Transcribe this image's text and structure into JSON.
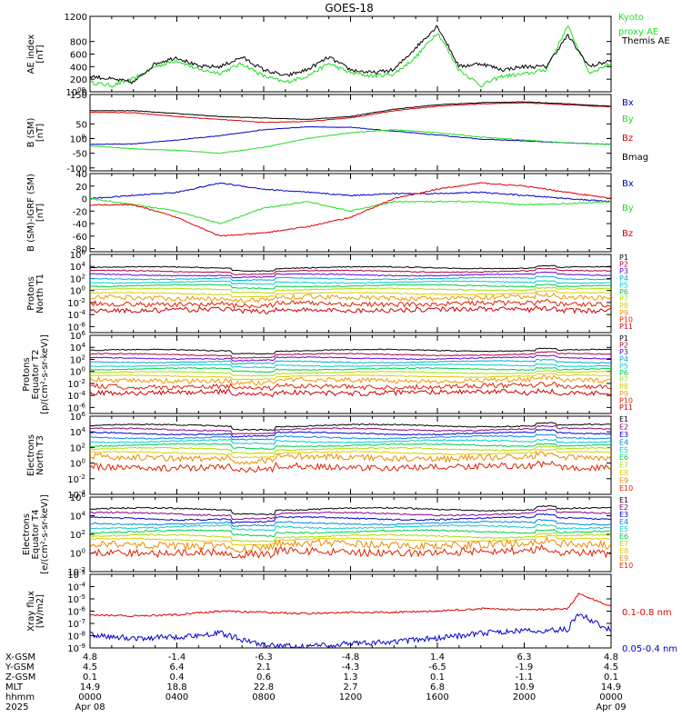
{
  "title": "GOES-18",
  "colors": {
    "green": "#22dd22",
    "black": "#000000",
    "blue": "#0000cc",
    "red": "#dd0000",
    "proton_scale": [
      "#000000",
      "#aa0044",
      "#6600cc",
      "#00aacc",
      "#00cccc",
      "#00cc44",
      "#aadd00",
      "#ddcc00",
      "#ee9900",
      "#dd2200",
      "#cc0000"
    ],
    "electron_scale": [
      "#000000",
      "#880088",
      "#0000cc",
      "#0088dd",
      "#00cccc",
      "#00cc44",
      "#aadd00",
      "#ddcc00",
      "#ee8800",
      "#dd2200"
    ]
  },
  "x_axis": {
    "ticks": [
      "0000",
      "0400",
      "0800",
      "1200",
      "1600",
      "2000",
      "0000"
    ],
    "rows": [
      {
        "label": "X-GSM",
        "values": [
          "4.8",
          "-1.4",
          "-6.3",
          "-4.8",
          "1.4",
          "6.3",
          "4.8"
        ]
      },
      {
        "label": "Y-GSM",
        "values": [
          "4.5",
          "6.4",
          "2.1",
          "-4.3",
          "-6.5",
          "-1.9",
          "4.5"
        ]
      },
      {
        "label": "Z-GSM",
        "values": [
          "0.1",
          "0.4",
          "0.6",
          "1.3",
          "0.1",
          "-1.1",
          "0.1"
        ]
      },
      {
        "label": "MLT",
        "values": [
          "14.9",
          "18.8",
          "22.8",
          "2.7",
          "6.8",
          "10.9",
          "14.9"
        ]
      },
      {
        "label": "hhmm",
        "values": [
          "0000",
          "0400",
          "0800",
          "1200",
          "1600",
          "2000",
          "0000"
        ]
      }
    ],
    "year": "2025",
    "date_start": "Apr 08",
    "date_end": "Apr 09"
  },
  "chart_data": [
    {
      "type": "line",
      "ylabel": [
        "AE index",
        "[nT]"
      ],
      "ylim": [
        0,
        1200
      ],
      "yticks": [
        "0",
        "200",
        "400",
        "600",
        "800",
        "1000",
        "1200"
      ],
      "legend": [
        {
          "label": "Kyoto",
          "color": "#22dd22"
        },
        {
          "label": "proxy AE",
          "color": "#22dd22"
        },
        {
          "label": "Themis AE",
          "color": "#000000"
        }
      ],
      "series": [
        {
          "name": "Kyoto proxy AE",
          "color": "#22dd22",
          "x": [
            0,
            1,
            2,
            3,
            4,
            5,
            6,
            7,
            8,
            9,
            10,
            11,
            12,
            13,
            14,
            15,
            16,
            17,
            18,
            19,
            20,
            21,
            22,
            23,
            24
          ],
          "values": [
            150,
            100,
            200,
            400,
            500,
            350,
            300,
            450,
            250,
            150,
            250,
            450,
            300,
            250,
            280,
            550,
            950,
            350,
            100,
            250,
            280,
            350,
            1050,
            300,
            450
          ]
        },
        {
          "name": "Themis AE",
          "color": "#000000",
          "x": [
            0,
            1,
            2,
            3,
            4,
            5,
            6,
            7,
            8,
            9,
            10,
            11,
            12,
            13,
            14,
            15,
            16,
            17,
            18,
            19,
            20,
            21,
            22,
            23,
            24
          ],
          "values": [
            250,
            200,
            150,
            450,
            550,
            400,
            400,
            550,
            350,
            250,
            350,
            550,
            350,
            300,
            350,
            700,
            1050,
            400,
            450,
            350,
            400,
            400,
            900,
            400,
            500
          ]
        }
      ]
    },
    {
      "type": "line",
      "ylabel": [
        "B (SM)",
        "[nT]"
      ],
      "ylim": [
        -110,
        150
      ],
      "yticks": [
        "-100",
        "-50",
        "0",
        "50",
        "100",
        "150"
      ],
      "legend": [
        {
          "label": "Bx",
          "color": "#0000cc"
        },
        {
          "label": "By",
          "color": "#22dd22"
        },
        {
          "label": "Bz",
          "color": "#dd0000"
        },
        {
          "label": "Bmag",
          "color": "#000000"
        }
      ],
      "series": [
        {
          "name": "Bx",
          "color": "#0000cc",
          "x": [
            0,
            2,
            4,
            6,
            8,
            10,
            12,
            14,
            16,
            18,
            20,
            22,
            24
          ],
          "values": [
            -20,
            -18,
            -5,
            10,
            30,
            40,
            38,
            25,
            12,
            -2,
            -8,
            -15,
            -20
          ]
        },
        {
          "name": "By",
          "color": "#22dd22",
          "x": [
            0,
            2,
            4,
            6,
            8,
            10,
            12,
            14,
            16,
            18,
            20,
            22,
            24
          ],
          "values": [
            -25,
            -35,
            -40,
            -50,
            -30,
            0,
            20,
            30,
            20,
            5,
            -5,
            -15,
            -20
          ]
        },
        {
          "name": "Bz",
          "color": "#dd0000",
          "x": [
            0,
            2,
            4,
            6,
            8,
            10,
            12,
            14,
            16,
            18,
            20,
            22,
            24
          ],
          "values": [
            90,
            88,
            75,
            65,
            55,
            58,
            70,
            95,
            110,
            118,
            122,
            115,
            108
          ]
        },
        {
          "name": "Bmag",
          "color": "#000000",
          "x": [
            0,
            2,
            4,
            6,
            8,
            10,
            12,
            14,
            16,
            18,
            20,
            22,
            24
          ],
          "values": [
            95,
            95,
            85,
            75,
            70,
            65,
            75,
            100,
            115,
            122,
            125,
            118,
            110
          ]
        }
      ]
    },
    {
      "type": "line",
      "ylabel": [
        "B (SM)-IGRF (SM)",
        "[nT]"
      ],
      "ylim": [
        -85,
        40
      ],
      "yticks": [
        "-80",
        "-60",
        "-40",
        "-20",
        "0",
        "20",
        "40"
      ],
      "legend": [
        {
          "label": "Bx",
          "color": "#0000cc"
        },
        {
          "label": "By",
          "color": "#22dd22"
        },
        {
          "label": "Bz",
          "color": "#dd0000"
        }
      ],
      "series": [
        {
          "name": "Bx",
          "color": "#0000cc",
          "x": [
            0,
            2,
            4,
            6,
            8,
            10,
            12,
            14,
            16,
            18,
            20,
            22,
            24
          ],
          "values": [
            0,
            5,
            10,
            25,
            15,
            10,
            5,
            8,
            8,
            10,
            5,
            0,
            -5
          ]
        },
        {
          "name": "By",
          "color": "#22dd22",
          "x": [
            0,
            2,
            4,
            6,
            8,
            10,
            12,
            14,
            16,
            18,
            20,
            22,
            24
          ],
          "values": [
            0,
            -10,
            -20,
            -40,
            -15,
            -5,
            -20,
            -5,
            -5,
            -5,
            -10,
            -8,
            -5
          ]
        },
        {
          "name": "Bz",
          "color": "#dd0000",
          "x": [
            0,
            2,
            4,
            6,
            8,
            10,
            12,
            14,
            16,
            18,
            20,
            22,
            24
          ],
          "values": [
            -10,
            -10,
            -30,
            -60,
            -55,
            -45,
            -30,
            0,
            15,
            25,
            20,
            10,
            0
          ]
        }
      ]
    },
    {
      "type": "line",
      "ylabel": [
        "Protons",
        "North T1"
      ],
      "ylim_log10": [
        -7,
        6
      ],
      "yticks": [
        "10-6",
        "10-4",
        "10-2",
        "100",
        "102",
        "104",
        "106"
      ],
      "legend_channels": [
        "P1",
        "P2",
        "P3",
        "P4",
        "P5",
        "P6",
        "P7",
        "P8",
        "P9",
        "P10",
        "P11"
      ],
      "levels_log10": [
        3.8,
        3.2,
        2.6,
        2.0,
        1.4,
        0.8,
        0.2,
        -0.5,
        -1.2,
        -2.2,
        -3.2
      ]
    },
    {
      "type": "line",
      "ylabel": [
        "Protons",
        "Equator T2",
        "[p/(cm²-s-sr-keV)]"
      ],
      "ylim_log10": [
        -7,
        6
      ],
      "yticks": [
        "10-6",
        "10-4",
        "10-2",
        "100",
        "102",
        "104",
        "106"
      ],
      "legend_channels": [
        "P1",
        "P2",
        "P3",
        "P4",
        "P5",
        "P6",
        "P7",
        "P8",
        "P9",
        "P10",
        "P11"
      ],
      "levels_log10": [
        3.5,
        2.8,
        2.2,
        1.6,
        1.0,
        0.4,
        -0.2,
        -0.8,
        -1.5,
        -2.5,
        -3.5
      ]
    },
    {
      "type": "line",
      "ylabel": [
        "Electrons",
        "North T3"
      ],
      "ylim_log10": [
        -4,
        6
      ],
      "yticks": [
        "10-4",
        "10-2",
        "100",
        "102",
        "104",
        "106"
      ],
      "legend_channels": [
        "E1",
        "E2",
        "E3",
        "E4",
        "E5",
        "E6",
        "E7",
        "E8",
        "E9",
        "E10"
      ],
      "levels_log10": [
        4.8,
        4.3,
        3.8,
        3.3,
        2.8,
        2.3,
        1.8,
        1.3,
        0.7,
        -0.5
      ]
    },
    {
      "type": "line",
      "ylabel": [
        "Electrons",
        "Equator T4",
        "[e/(cm²-s-sr-keV)]"
      ],
      "ylim_log10": [
        -2,
        6
      ],
      "yticks": [
        "10-2",
        "100",
        "102",
        "104",
        "106"
      ],
      "legend_channels": [
        "E1",
        "E2",
        "E3",
        "E4",
        "E5",
        "E6",
        "E7",
        "E8",
        "E9",
        "E10"
      ],
      "levels_log10": [
        4.7,
        4.2,
        3.7,
        3.2,
        2.8,
        2.3,
        1.8,
        1.4,
        0.9,
        0.1
      ]
    },
    {
      "type": "line",
      "ylabel": [
        "Xray flux",
        "[W/m2]"
      ],
      "ylim_log10": [
        -9,
        -3
      ],
      "yticks": [
        "10-9",
        "10-8",
        "10-7",
        "10-6",
        "10-5",
        "10-4",
        "10-3"
      ],
      "legend": [
        {
          "label": "0.1-0.8 nm",
          "color": "#dd0000"
        },
        {
          "label": "0.05-0.4 nm",
          "color": "#0000cc"
        }
      ],
      "series": [
        {
          "name": "0.1-0.8 nm",
          "color": "#dd0000",
          "x": [
            0,
            2,
            4,
            6,
            8,
            10,
            12,
            14,
            16,
            18,
            20,
            22,
            22.5,
            24
          ],
          "values_log10": [
            -6.3,
            -6.4,
            -6.3,
            -6.0,
            -6.1,
            -6.2,
            -6.1,
            -6.1,
            -6.0,
            -5.8,
            -5.9,
            -5.8,
            -4.6,
            -5.6
          ]
        },
        {
          "name": "0.05-0.4 nm",
          "color": "#0000cc",
          "x": [
            0,
            2,
            4,
            6,
            8,
            10,
            12,
            14,
            16,
            18,
            20,
            22,
            22.5,
            24
          ],
          "values_log10": [
            -7.9,
            -8.2,
            -8.1,
            -7.8,
            -8.8,
            -8.9,
            -8.6,
            -8.5,
            -8.2,
            -7.8,
            -7.6,
            -7.5,
            -6.2,
            -7.6
          ]
        }
      ]
    }
  ]
}
